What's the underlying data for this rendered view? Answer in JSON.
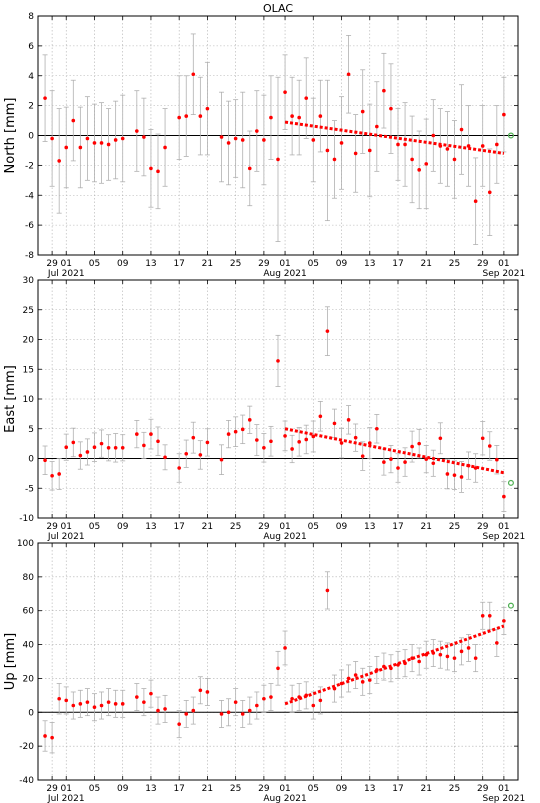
{
  "colors": {
    "point": "#ff0000",
    "trend": "#ff0000",
    "errorbar": "#b0b0b0",
    "grid": "#b0b0b0",
    "predicted_marker": "#4caf50",
    "zero_line": "#000000"
  },
  "chart_data": [
    {
      "type": "scatter",
      "title": "OLAC",
      "ylabel": "North [mm]",
      "ylim": [
        -8,
        8
      ],
      "yticks": [
        -8,
        -6,
        -4,
        -2,
        0,
        2,
        4,
        6,
        8
      ],
      "x_day_ticks": [
        "29",
        "01",
        "05",
        "09",
        "13",
        "17",
        "21",
        "25",
        "29",
        "01",
        "05",
        "09",
        "13",
        "17",
        "21",
        "25",
        "29",
        "01"
      ],
      "x_month_labels": [
        "Jul 2021",
        "Aug 2021",
        "Sep 2021"
      ],
      "xlim": [
        "2021-06-27",
        "2021-09-03"
      ],
      "grid": true,
      "series": [
        {
          "x": [
            "2021-06-28",
            "2021-06-29",
            "2021-06-30",
            "2021-07-01",
            "2021-07-02",
            "2021-07-03",
            "2021-07-04",
            "2021-07-05",
            "2021-07-06",
            "2021-07-07",
            "2021-07-08",
            "2021-07-09",
            "2021-07-11",
            "2021-07-12",
            "2021-07-13",
            "2021-07-14",
            "2021-07-15",
            "2021-07-17",
            "2021-07-18",
            "2021-07-19",
            "2021-07-20",
            "2021-07-21",
            "2021-07-23",
            "2021-07-24",
            "2021-07-25",
            "2021-07-26",
            "2021-07-27",
            "2021-07-28",
            "2021-07-29",
            "2021-07-30",
            "2021-07-31",
            "2021-08-01",
            "2021-08-02",
            "2021-08-03",
            "2021-08-04",
            "2021-08-05",
            "2021-08-06",
            "2021-08-07",
            "2021-08-08",
            "2021-08-09",
            "2021-08-10",
            "2021-08-11",
            "2021-08-12",
            "2021-08-13",
            "2021-08-14",
            "2021-08-15",
            "2021-08-16",
            "2021-08-17",
            "2021-08-18",
            "2021-08-19",
            "2021-08-20",
            "2021-08-21",
            "2021-08-22",
            "2021-08-23",
            "2021-08-24",
            "2021-08-25",
            "2021-08-26",
            "2021-08-27",
            "2021-08-28",
            "2021-08-29",
            "2021-08-30",
            "2021-08-31",
            "2021-09-01"
          ],
          "y": [
            2.5,
            -0.2,
            -1.7,
            -0.8,
            1.0,
            -0.8,
            -0.2,
            -0.5,
            -0.5,
            -0.6,
            -0.3,
            -0.2,
            0.3,
            -0.1,
            -2.2,
            -2.4,
            -0.8,
            1.2,
            1.3,
            4.1,
            1.3,
            1.8,
            -0.1,
            -0.5,
            -0.2,
            -0.3,
            -2.2,
            0.3,
            -0.3,
            1.2,
            -1.6,
            2.9,
            1.3,
            1.2,
            2.5,
            -0.3,
            1.3,
            -1.0,
            -1.6,
            -0.5,
            4.1,
            -1.2,
            1.6,
            -1.0,
            0.6,
            3.0,
            1.8,
            -0.6,
            -0.6,
            -1.6,
            -2.3,
            -1.9,
            0.0,
            -0.7,
            -0.9,
            -1.6,
            0.4,
            -0.7,
            -4.4,
            -0.7,
            -3.8,
            -0.6,
            1.4
          ],
          "err": [
            2.9,
            3.2,
            3.5,
            2.7,
            2.7,
            2.7,
            2.8,
            2.6,
            2.7,
            2.4,
            2.6,
            2.9,
            2.7,
            2.6,
            2.6,
            2.5,
            2.6,
            2.8,
            2.7,
            2.7,
            2.6,
            3.1,
            3.0,
            2.8,
            2.6,
            3.2,
            2.5,
            2.7,
            3.0,
            2.8,
            5.5,
            2.5,
            2.6,
            2.5,
            2.7,
            2.8,
            2.4,
            4.7,
            2.6,
            3.1,
            2.6,
            2.6,
            2.8,
            3.1,
            3.0,
            2.5,
            3.0,
            2.4,
            2.8,
            2.9,
            2.6,
            3.0,
            2.4,
            2.5,
            2.5,
            2.6,
            3.0,
            2.7,
            2.9,
            2.7,
            2.9,
            2.6,
            2.5
          ]
        }
      ],
      "trend": {
        "x": [
          "2021-08-01",
          "2021-09-01"
        ],
        "y": [
          0.9,
          -1.2
        ]
      },
      "predicted": {
        "x": "2021-09-02",
        "y": 0.0
      }
    },
    {
      "type": "scatter",
      "title": "",
      "ylabel": "East [mm]",
      "ylim": [
        -10,
        30
      ],
      "yticks": [
        -10,
        -5,
        0,
        5,
        10,
        15,
        20,
        25,
        30
      ],
      "x_day_ticks": [
        "29",
        "01",
        "05",
        "09",
        "13",
        "17",
        "21",
        "25",
        "29",
        "01",
        "05",
        "09",
        "13",
        "17",
        "21",
        "25",
        "29",
        "01"
      ],
      "x_month_labels": [
        "Jul 2021",
        "Aug 2021",
        "Sep 2021"
      ],
      "xlim": [
        "2021-06-27",
        "2021-09-03"
      ],
      "grid": true,
      "series": [
        {
          "x": [
            "2021-06-28",
            "2021-06-29",
            "2021-06-30",
            "2021-07-01",
            "2021-07-02",
            "2021-07-03",
            "2021-07-04",
            "2021-07-05",
            "2021-07-06",
            "2021-07-07",
            "2021-07-08",
            "2021-07-09",
            "2021-07-11",
            "2021-07-12",
            "2021-07-13",
            "2021-07-14",
            "2021-07-15",
            "2021-07-17",
            "2021-07-18",
            "2021-07-19",
            "2021-07-20",
            "2021-07-21",
            "2021-07-23",
            "2021-07-24",
            "2021-07-25",
            "2021-07-26",
            "2021-07-27",
            "2021-07-28",
            "2021-07-29",
            "2021-07-30",
            "2021-07-31",
            "2021-08-01",
            "2021-08-02",
            "2021-08-03",
            "2021-08-04",
            "2021-08-05",
            "2021-08-06",
            "2021-08-07",
            "2021-08-08",
            "2021-08-09",
            "2021-08-10",
            "2021-08-11",
            "2021-08-12",
            "2021-08-13",
            "2021-08-14",
            "2021-08-15",
            "2021-08-16",
            "2021-08-17",
            "2021-08-18",
            "2021-08-19",
            "2021-08-20",
            "2021-08-21",
            "2021-08-22",
            "2021-08-23",
            "2021-08-24",
            "2021-08-25",
            "2021-08-26",
            "2021-08-27",
            "2021-08-28",
            "2021-08-29",
            "2021-08-30",
            "2021-08-31",
            "2021-09-01"
          ],
          "y": [
            -0.3,
            -2.9,
            -2.6,
            1.9,
            2.7,
            0.5,
            1.1,
            1.9,
            2.5,
            1.8,
            1.8,
            1.8,
            4.1,
            2.2,
            4.1,
            2.9,
            0.2,
            -1.6,
            0.8,
            3.5,
            0.6,
            2.7,
            -0.2,
            4.1,
            4.5,
            4.9,
            6.5,
            3.1,
            1.8,
            2.9,
            16.4,
            3.8,
            1.6,
            2.8,
            3.2,
            3.7,
            7.1,
            21.4,
            5.9,
            2.6,
            6.5,
            3.5,
            0.4,
            2.6,
            5.0,
            -0.6,
            -0.1,
            -1.6,
            -0.6,
            2.0,
            2.5,
            -0.1,
            -0.8,
            3.4,
            -2.6,
            -2.8,
            -3.1,
            -1.2,
            -1.6,
            3.4,
            2.1,
            -0.2,
            -6.4
          ],
          "err": [
            2.4,
            2.4,
            2.6,
            2.2,
            2.4,
            2.3,
            2.2,
            2.4,
            2.3,
            2.2,
            2.4,
            2.2,
            2.3,
            2.2,
            2.5,
            2.4,
            2.1,
            2.4,
            2.3,
            2.6,
            2.4,
            2.3,
            2.5,
            2.3,
            2.5,
            2.4,
            2.3,
            2.6,
            2.4,
            2.5,
            4.3,
            2.5,
            2.3,
            2.4,
            2.4,
            2.6,
            2.5,
            4.1,
            2.4,
            2.5,
            2.4,
            2.3,
            2.4,
            2.6,
            2.4,
            2.2,
            2.3,
            2.4,
            2.4,
            2.6,
            2.4,
            2.3,
            2.2,
            2.6,
            2.5,
            2.4,
            2.6,
            2.3,
            2.4,
            2.8,
            2.4,
            2.4,
            2.5
          ]
        }
      ],
      "trend": {
        "x": [
          "2021-08-01",
          "2021-09-01"
        ],
        "y": [
          5.0,
          -2.4
        ]
      },
      "predicted": {
        "x": "2021-09-02",
        "y": -4.1
      }
    },
    {
      "type": "scatter",
      "title": "",
      "ylabel": "Up [mm]",
      "ylim": [
        -40,
        100
      ],
      "yticks": [
        -40,
        -20,
        0,
        20,
        40,
        60,
        80,
        100
      ],
      "x_day_ticks": [
        "29",
        "01",
        "05",
        "09",
        "13",
        "17",
        "21",
        "25",
        "29",
        "01",
        "05",
        "09",
        "13",
        "17",
        "21",
        "25",
        "29",
        "01"
      ],
      "x_month_labels": [
        "Jul 2021",
        "Aug 2021",
        "Sep 2021"
      ],
      "xlim": [
        "2021-06-27",
        "2021-09-03"
      ],
      "grid": true,
      "series": [
        {
          "x": [
            "2021-06-28",
            "2021-06-29",
            "2021-06-30",
            "2021-07-01",
            "2021-07-02",
            "2021-07-03",
            "2021-07-04",
            "2021-07-05",
            "2021-07-06",
            "2021-07-07",
            "2021-07-08",
            "2021-07-09",
            "2021-07-11",
            "2021-07-12",
            "2021-07-13",
            "2021-07-14",
            "2021-07-15",
            "2021-07-17",
            "2021-07-18",
            "2021-07-19",
            "2021-07-20",
            "2021-07-21",
            "2021-07-23",
            "2021-07-24",
            "2021-07-25",
            "2021-07-26",
            "2021-07-27",
            "2021-07-28",
            "2021-07-29",
            "2021-07-30",
            "2021-07-31",
            "2021-08-01",
            "2021-08-02",
            "2021-08-03",
            "2021-08-04",
            "2021-08-05",
            "2021-08-06",
            "2021-08-07",
            "2021-08-08",
            "2021-08-09",
            "2021-08-10",
            "2021-08-11",
            "2021-08-12",
            "2021-08-13",
            "2021-08-14",
            "2021-08-15",
            "2021-08-16",
            "2021-08-17",
            "2021-08-18",
            "2021-08-19",
            "2021-08-20",
            "2021-08-21",
            "2021-08-22",
            "2021-08-23",
            "2021-08-24",
            "2021-08-25",
            "2021-08-26",
            "2021-08-27",
            "2021-08-28",
            "2021-08-29",
            "2021-08-30",
            "2021-08-31",
            "2021-09-01"
          ],
          "y": [
            -14,
            -15,
            8,
            7,
            4,
            5,
            6,
            3,
            4,
            6,
            5,
            5,
            9,
            6,
            11,
            1,
            2,
            -7,
            -1,
            1,
            13,
            12,
            -1,
            0,
            6,
            -1,
            1,
            4,
            8,
            9,
            26,
            38,
            8,
            9,
            10,
            4,
            7,
            72,
            14,
            17,
            20,
            22,
            18,
            19,
            25,
            27,
            26,
            28,
            29,
            32,
            30,
            34,
            35,
            34,
            33,
            32,
            36,
            38,
            32,
            57,
            57,
            41,
            54
          ],
          "err": [
            9,
            9,
            9,
            8,
            8,
            8,
            8,
            8,
            8,
            8,
            8,
            8,
            8,
            8,
            8,
            8,
            8,
            8,
            8,
            8,
            8,
            8,
            8,
            8,
            8,
            8,
            8,
            8,
            8,
            8,
            10,
            10,
            8,
            8,
            8,
            8,
            8,
            11,
            8,
            8,
            8,
            8,
            8,
            8,
            8,
            8,
            8,
            8,
            8,
            8,
            8,
            8,
            8,
            8,
            8,
            8,
            8,
            8,
            8,
            8,
            8,
            8,
            8
          ]
        }
      ],
      "trend": {
        "x": [
          "2021-08-01",
          "2021-09-01"
        ],
        "y": [
          5,
          51
        ]
      },
      "predicted": {
        "x": "2021-09-02",
        "y": 63
      }
    }
  ]
}
